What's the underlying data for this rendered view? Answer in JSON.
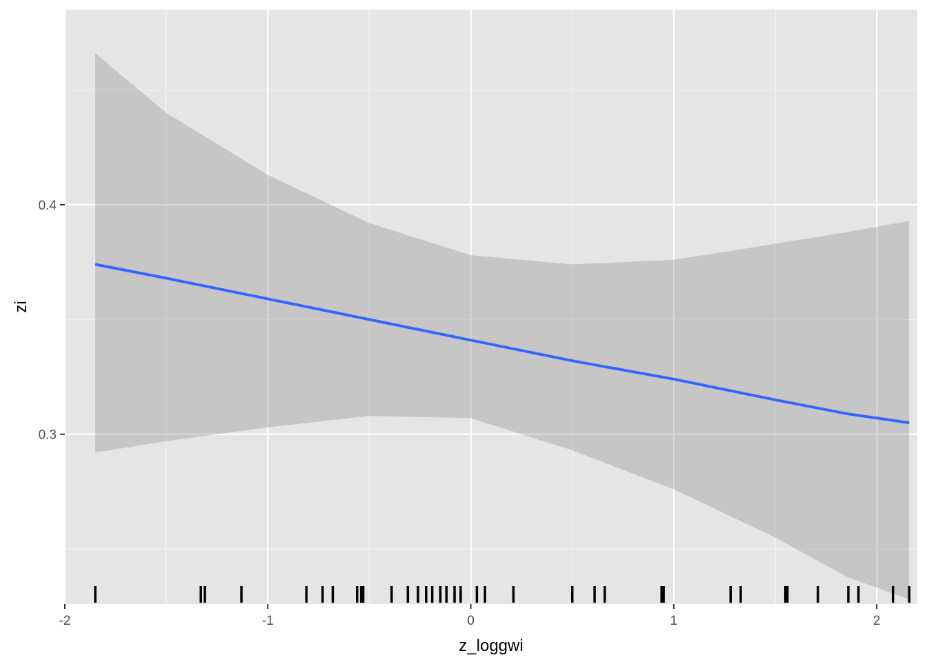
{
  "chart_data": {
    "type": "line",
    "xlabel": "z_loggwi",
    "ylabel": "zi",
    "xlim": [
      -2.0,
      2.2
    ],
    "ylim": [
      0.226,
      0.485
    ],
    "x_ticks": [
      -2,
      -1,
      0,
      1,
      2
    ],
    "x_tick_labels": [
      "-2",
      "-1",
      "0",
      "1",
      "2"
    ],
    "y_ticks": [
      0.3,
      0.4
    ],
    "y_tick_labels": [
      "0.3",
      "0.4"
    ],
    "grid": true,
    "background": "#e5e5e5",
    "line_color": "#3366ff",
    "ribbon_color": "#999999",
    "series": [
      {
        "x": [
          -1.85,
          -1.5,
          -1.0,
          -0.5,
          0.0,
          0.5,
          1.0,
          1.5,
          1.85,
          2.16
        ],
        "y": [
          0.374,
          0.368,
          0.359,
          0.35,
          0.341,
          0.332,
          0.324,
          0.315,
          0.309,
          0.305
        ],
        "ymin": [
          0.292,
          0.297,
          0.303,
          0.308,
          0.307,
          0.293,
          0.276,
          0.255,
          0.238,
          0.228
        ],
        "ymax": [
          0.466,
          0.44,
          0.413,
          0.392,
          0.378,
          0.374,
          0.376,
          0.383,
          0.388,
          0.393
        ]
      }
    ],
    "rug_x": [
      -1.85,
      -1.33,
      -1.31,
      -1.13,
      -0.81,
      -0.73,
      -0.68,
      -0.56,
      -0.54,
      -0.53,
      -0.39,
      -0.31,
      -0.26,
      -0.22,
      -0.19,
      -0.15,
      -0.12,
      -0.08,
      -0.05,
      0.03,
      0.07,
      0.21,
      0.5,
      0.61,
      0.66,
      0.94,
      0.95,
      1.28,
      1.33,
      1.55,
      1.56,
      1.71,
      1.86,
      1.91,
      2.08,
      2.16
    ]
  }
}
